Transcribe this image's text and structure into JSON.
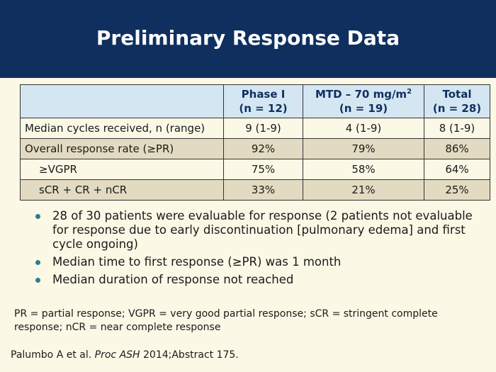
{
  "title": "Preliminary Response Data",
  "table": {
    "header": {
      "phase1_line1": "Phase I",
      "phase1_line2": "(n = 12)",
      "mtd_line1_prefix": "MTD – 70 mg/m",
      "mtd_line1_sup": "2",
      "mtd_line2": "(n = 19)",
      "total_line1": "Total",
      "total_line2": "(n = 28)"
    },
    "rows": [
      {
        "label": "Median cycles received, n (range)",
        "phase1": "9 (1-9)",
        "mtd": "4 (1-9)",
        "total": "8 (1-9)"
      },
      {
        "label": "Overall response rate (≥PR)",
        "phase1": "92%",
        "mtd": "79%",
        "total": "86%"
      },
      {
        "label": "≥VGPR",
        "phase1": "75%",
        "mtd": "58%",
        "total": "64%"
      },
      {
        "label": "sCR + CR + nCR",
        "phase1": "33%",
        "mtd": "21%",
        "total": "25%"
      }
    ]
  },
  "bullets": [
    "28 of 30 patients were evaluable for response (2 patients not evaluable for response due to early discontinuation [pulmonary edema] and first cycle ongoing)",
    "Median time to first response (≥PR) was 1 month",
    "Median duration of response not reached"
  ],
  "footnote": "PR = partial response; VGPR = very good partial response; sCR = stringent complete response; nCR = near complete response",
  "citation": {
    "prefix": "Palumbo A et al. ",
    "journal": "Proc ASH",
    "suffix": " 2014;Abstract 175."
  }
}
